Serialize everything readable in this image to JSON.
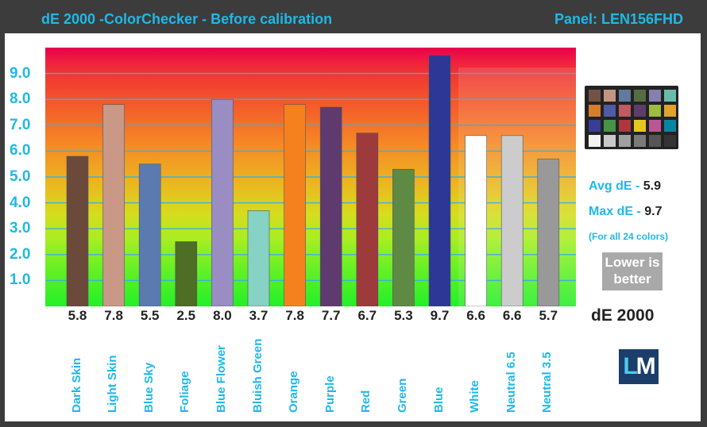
{
  "header": {
    "title": "dE 2000 -ColorChecker  - Before calibration",
    "panel": "Panel: LEN156FHD"
  },
  "chart_data": {
    "type": "bar",
    "categories": [
      "Dark Skin",
      "Light Skin",
      "Blue Sky",
      "Foliage",
      "Blue Flower",
      "Bluish Green",
      "Orange",
      "Purple",
      "Red",
      "Green",
      "Blue",
      "White",
      "Neutral 6.5",
      "Neutral 3.5"
    ],
    "values": [
      5.8,
      7.8,
      5.5,
      2.5,
      8.0,
      3.7,
      7.8,
      7.7,
      6.7,
      5.3,
      9.7,
      6.6,
      6.6,
      5.7
    ],
    "value_labels": [
      "5.8",
      "7.8",
      "5.5",
      "2.5",
      "8.0",
      "3.7",
      "7.8",
      "7.7",
      "6.7",
      "5.3",
      "9.7",
      "6.6",
      "6.6",
      "5.7"
    ],
    "colors": [
      "#6b4a3c",
      "#c99886",
      "#5b7bb0",
      "#4e6d25",
      "#9a8dc4",
      "#86d2c4",
      "#f5811e",
      "#5e3a6e",
      "#9d3a3c",
      "#5e8a44",
      "#2c3796",
      "#ffffff",
      "#cccccc",
      "#999999"
    ],
    "yticks": [
      "1.0",
      "2.0",
      "3.0",
      "4.0",
      "5.0",
      "6.0",
      "7.0",
      "8.0",
      "9.0"
    ],
    "ylim": [
      0,
      10
    ],
    "grid": true,
    "xlabel": "dE 2000"
  },
  "side": {
    "avg_label": "Avg dE - ",
    "avg_value": "5.9",
    "max_label": "Max dE - ",
    "max_value": "9.7",
    "note": "(For all 24 colors)",
    "lower_line1": "Lower is",
    "lower_line2": "better",
    "de2000": "dE 2000",
    "logo_l": "L",
    "logo_m": "M"
  },
  "checker_colors": [
    "#735244",
    "#c29682",
    "#627a9d",
    "#576c43",
    "#8580b1",
    "#67bdaa",
    "#d67e2c",
    "#505ba6",
    "#c15a63",
    "#5e3c6c",
    "#9dbc40",
    "#e0a32e",
    "#383d96",
    "#469449",
    "#af363c",
    "#e7c71f",
    "#bb5695",
    "#0885a1",
    "#f3f3f2",
    "#c8c8c8",
    "#a0a0a0",
    "#7a7a79",
    "#555555",
    "#343434"
  ]
}
